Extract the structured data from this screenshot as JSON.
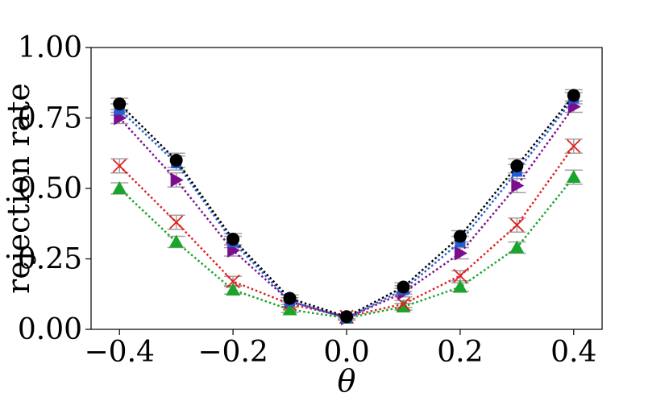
{
  "chart_data": {
    "type": "line",
    "xlabel": "θ",
    "ylabel": "rejection rate",
    "xlim": [
      -0.45,
      0.45
    ],
    "ylim": [
      0,
      1
    ],
    "x_ticks": [
      -0.4,
      -0.2,
      0.0,
      0.2,
      0.4
    ],
    "x_tick_labels": [
      "−0.4",
      "−0.2",
      "0.0",
      "0.2",
      "0.4"
    ],
    "y_ticks": [
      0,
      0.25,
      0.5,
      0.75,
      1.0
    ],
    "y_tick_labels": [
      "0.00",
      "0.25",
      "0.50",
      "0.75",
      "1.00"
    ],
    "grid": false,
    "legend": "none",
    "x": [
      -0.4,
      -0.3,
      -0.2,
      -0.1,
      0.0,
      0.1,
      0.2,
      0.3,
      0.4
    ],
    "series": [
      {
        "marker": "triangle-up",
        "color": "#1aa52a",
        "values": [
          0.5,
          0.31,
          0.14,
          0.07,
          0.04,
          0.08,
          0.15,
          0.29,
          0.54
        ],
        "err": [
          0.02,
          0.02,
          0.015,
          0.01,
          0.008,
          0.012,
          0.015,
          0.02,
          0.025
        ]
      },
      {
        "marker": "x",
        "color": "#e11f1f",
        "values": [
          0.58,
          0.38,
          0.17,
          0.09,
          0.045,
          0.09,
          0.19,
          0.37,
          0.65
        ],
        "err": [
          0.025,
          0.025,
          0.018,
          0.012,
          0.008,
          0.012,
          0.018,
          0.025,
          0.025
        ]
      },
      {
        "marker": "triangle-right",
        "color": "#7b0e8f",
        "values": [
          0.75,
          0.53,
          0.28,
          0.1,
          0.04,
          0.13,
          0.27,
          0.51,
          0.79
        ],
        "err": [
          0.02,
          0.025,
          0.02,
          0.012,
          0.008,
          0.015,
          0.02,
          0.025,
          0.02
        ]
      },
      {
        "marker": "square",
        "color": "#1f5fd6",
        "values": [
          0.78,
          0.59,
          0.31,
          0.1,
          0.04,
          0.14,
          0.31,
          0.56,
          0.82
        ],
        "err": [
          0.02,
          0.025,
          0.02,
          0.012,
          0.008,
          0.015,
          0.02,
          0.025,
          0.02
        ]
      },
      {
        "marker": "circle",
        "color": "#000000",
        "values": [
          0.8,
          0.6,
          0.32,
          0.11,
          0.045,
          0.15,
          0.33,
          0.58,
          0.83
        ],
        "err": [
          0.02,
          0.025,
          0.02,
          0.012,
          0.008,
          0.015,
          0.02,
          0.025,
          0.02
        ]
      }
    ],
    "errorbar_color": "#a0a0a0"
  }
}
